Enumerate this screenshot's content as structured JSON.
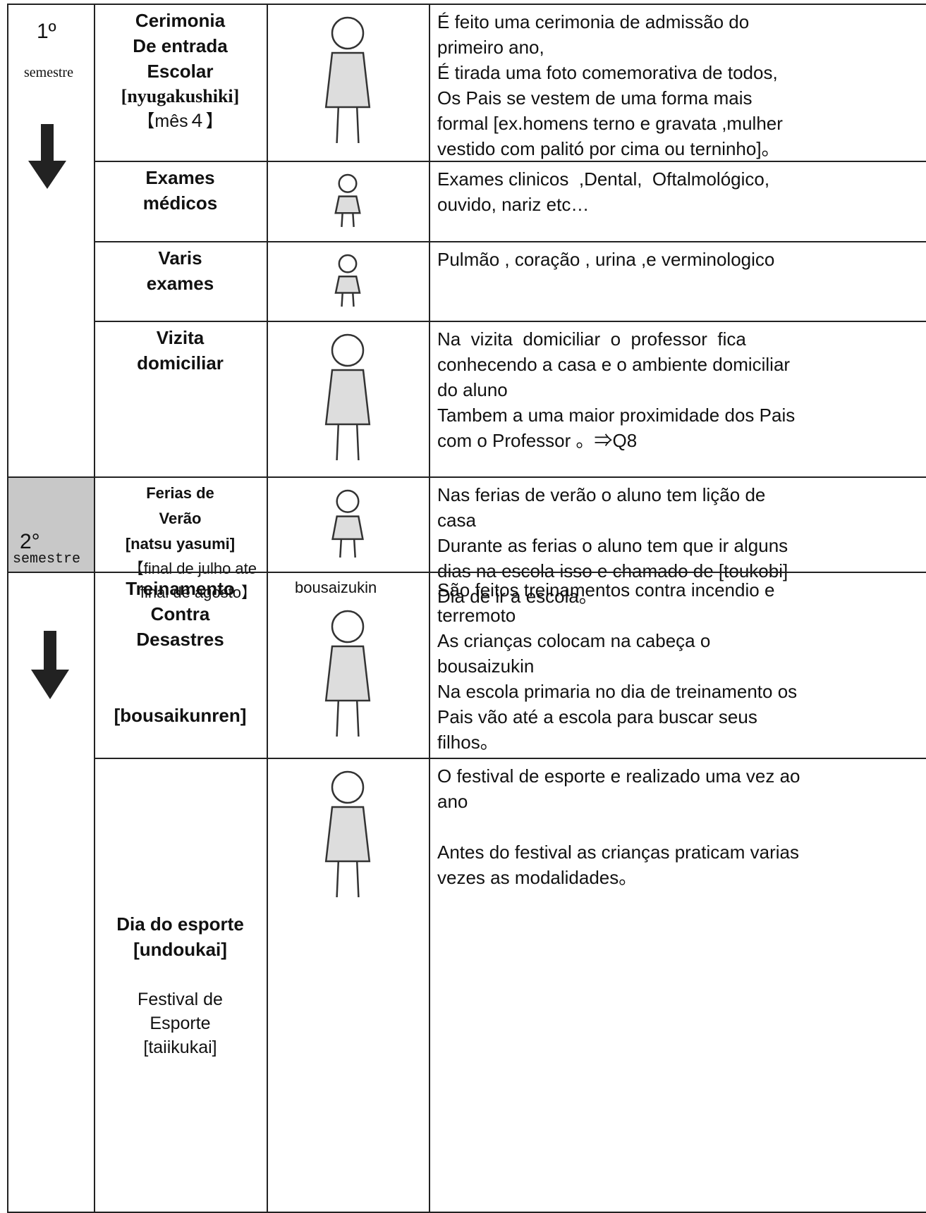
{
  "semesters": [
    {
      "label": "1º",
      "sublabel": "semestre"
    },
    {
      "label": "2°",
      "sublabel": "semestre"
    }
  ],
  "events": [
    {
      "name": [
        "Cerimonia",
        "De entrada",
        "Escolar",
        "[nyugakushiki]"
      ],
      "note": [
        "【mês４】"
      ],
      "description": [
        "É feito uma cerimonia de admissão do",
        "primeiro ano,",
        "É tirada uma foto comemorativa de todos,",
        "Os Pais se vestem de uma forma mais",
        "formal [ex.homens terno e gravata ,mulher",
        "vestido com palitó por cima ou terninho]。"
      ]
    },
    {
      "name": [
        "Exames",
        "médicos"
      ],
      "note": [],
      "description": [
        "Exames clinicos  ,Dental,  Oftalmológico,",
        "ouvido, nariz etc…"
      ]
    },
    {
      "name": [
        "Varis",
        "exames"
      ],
      "note": [],
      "description": [
        "Pulmão , coração , urina ,e verminologico"
      ]
    },
    {
      "name": [
        "Vizita",
        "domiciliar"
      ],
      "note": [],
      "description": [
        "Na  vizita  domiciliar  o  professor  fica",
        "conhecendo a casa e o ambiente domiciliar",
        "do aluno",
        "Tambem a uma maior proximidade dos Pais",
        "com o Professor 。⇒Q8"
      ]
    },
    {
      "name": [
        "Ferias de",
        "Verão",
        "[natsu yasumi]"
      ],
      "note": [
        "【final de julho ate",
        "final de agosto】"
      ],
      "description": [
        "Nas ferias de verão o aluno tem lição de",
        "casa",
        "Durante as ferias o aluno tem que ir alguns",
        "dias na escola isso e chamado de [toukobi]",
        "Dia de ir a escola。"
      ]
    },
    {
      "name": [
        "Treinamento",
        "Contra",
        "Desastres",
        "[bousaikunren]"
      ],
      "note": [],
      "caption": "bousaizukin",
      "description": [
        "São feitos treinamentos contra incendio e",
        "terremoto",
        "As crianças colocam na cabeça o",
        "bousaizukin",
        "Na escola primaria no dia de treinamento os",
        "Pais vão até a escola para buscar seus",
        "filhos。"
      ]
    },
    {
      "name": [
        "Dia do esporte",
        "[undoukai]"
      ],
      "note": [
        "Festival de",
        "Esporte",
        "[taiikukai]"
      ],
      "description": [
        "O festival de esporte e realizado uma vez ao",
        "ano",
        "Antes do festival as crianças praticam varias",
        "vezes as modalidades。"
      ]
    }
  ]
}
